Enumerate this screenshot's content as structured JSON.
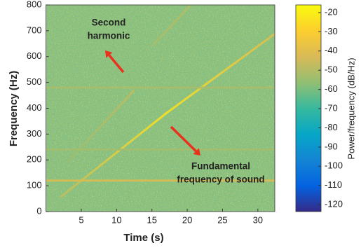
{
  "chart_data": {
    "type": "spectrogram",
    "xlabel": "Time (s)",
    "ylabel": "Frequency (Hz)",
    "colorbar_label": "Power/frequency (dB/Hz)",
    "xlim": [
      0,
      32.4
    ],
    "xticks": [
      5,
      10,
      15,
      20,
      25,
      30
    ],
    "ylim": [
      0,
      800
    ],
    "yticks": [
      0,
      100,
      200,
      300,
      400,
      500,
      600,
      700,
      800
    ],
    "clim": [
      -123.6,
      -16
    ],
    "cticks": [
      -20,
      -30,
      -40,
      -50,
      -60,
      -70,
      -80,
      -90,
      -100,
      -110,
      -120
    ],
    "colormap": [
      "#352a87",
      "#0363e1",
      "#1485d4",
      "#06a7c6",
      "#38b99e",
      "#92bf73",
      "#d9ba56",
      "#fcce2e",
      "#f9fb0e"
    ],
    "noise_level": -57,
    "ridges": [
      {
        "x": [
          2,
          17,
          33
        ],
        "y": [
          55,
          380,
          700
        ],
        "levels": [
          -48,
          -24,
          -42
        ]
      },
      {
        "x": [
          3,
          12.5
        ],
        "y": [
          190,
          470
        ],
        "levels": [
          -55,
          -48
        ]
      },
      {
        "x": [
          15,
          20.5
        ],
        "y": [
          640,
          800
        ],
        "levels": [
          -52,
          -50
        ]
      },
      {
        "x": [
          0,
          32.4
        ],
        "y": [
          120,
          120
        ],
        "levels": [
          -42,
          -42
        ]
      },
      {
        "x": [
          0,
          32.4
        ],
        "y": [
          480,
          480
        ],
        "levels": [
          -52,
          -52
        ]
      },
      {
        "x": [
          0,
          32.4
        ],
        "y": [
          240,
          240
        ],
        "levels": [
          -53,
          -53
        ]
      }
    ],
    "annotations": [
      {
        "lines": [
          "Second",
          "harmonic"
        ],
        "color": "#e8321e"
      },
      {
        "lines": [
          "Fundamental",
          "frequency of sound"
        ],
        "color": "#e8321e"
      }
    ]
  }
}
